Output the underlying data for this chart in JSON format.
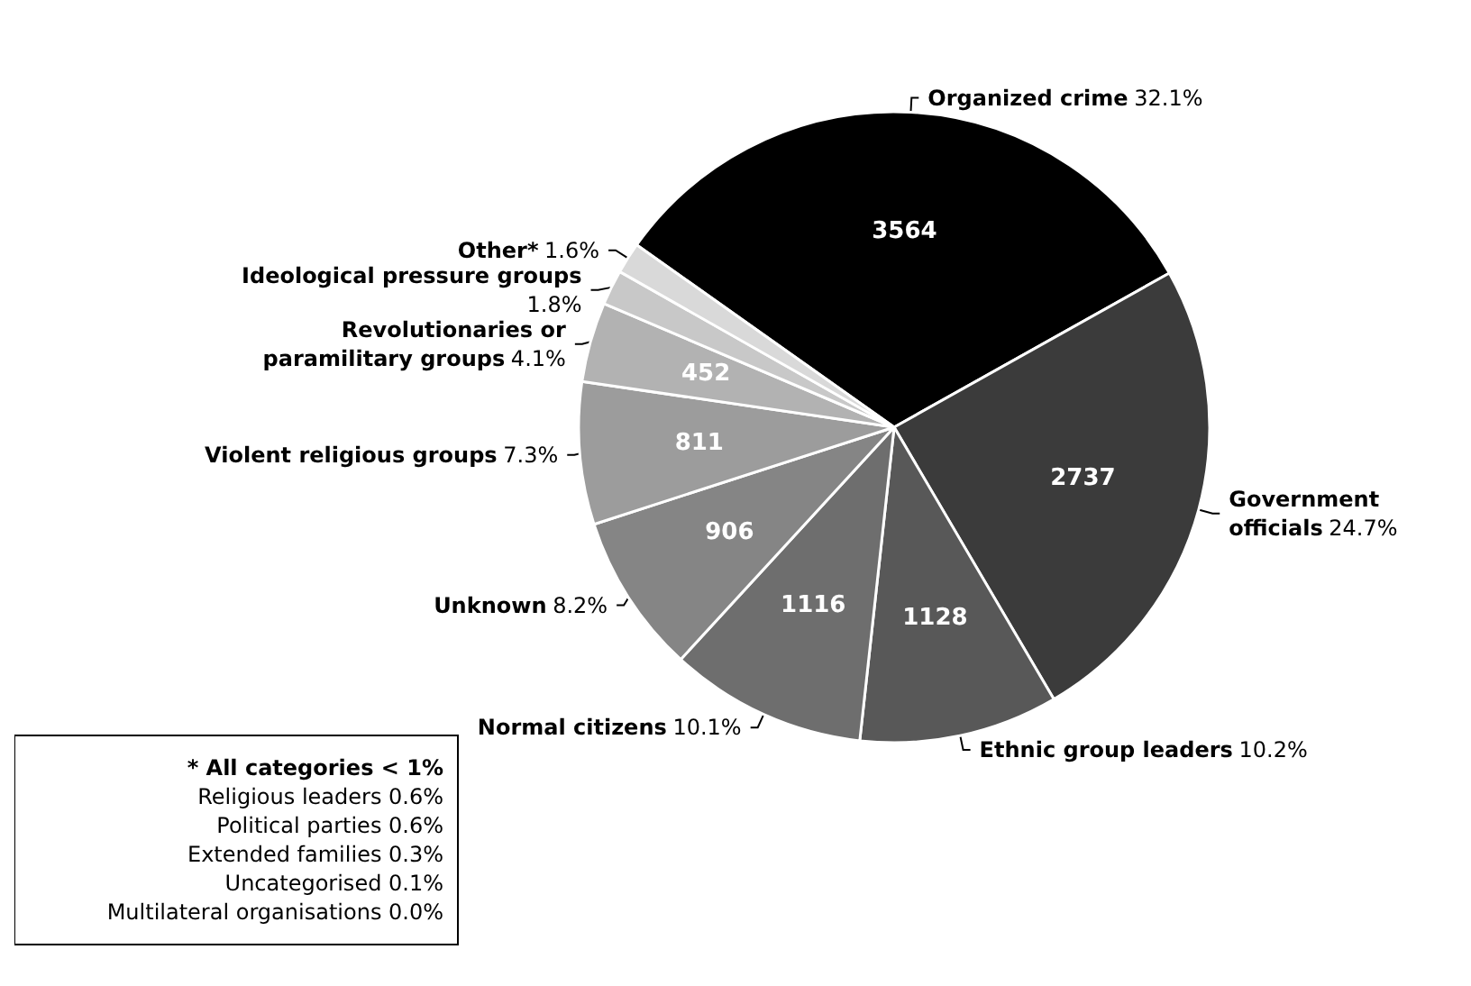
{
  "chart_data": {
    "type": "pie",
    "categories": [
      "Organized crime",
      "Government officials",
      "Ethnic group leaders",
      "Normal citizens",
      "Unknown",
      "Violent religious groups",
      "Revolutionaries or paramilitary groups",
      "Ideological pressure groups",
      "Other*"
    ],
    "values": [
      32.1,
      24.7,
      10.2,
      10.1,
      8.2,
      7.3,
      4.1,
      1.8,
      1.6
    ],
    "colors": [
      "#000000",
      "#3b3b3b",
      "#585858",
      "#6e6e6e",
      "#858585",
      "#9c9c9c",
      "#b2b2b2",
      "#c8c8c8",
      "#d9d9d9"
    ],
    "value_labels": [
      "32.1%",
      "24.7%",
      "10.2%",
      "10.1%",
      "8.2%",
      "7.3%",
      "4.1%",
      "1.8%",
      "1.6%"
    ],
    "annotations": [
      {
        "text": "3564",
        "x": "Organized crime"
      },
      {
        "text": "2737",
        "x": "Government officials"
      },
      {
        "text": "1128",
        "x": "Ethnic group leaders"
      },
      {
        "text": "1116",
        "x": "Normal citizens"
      },
      {
        "text": "906",
        "x": "Unknown"
      },
      {
        "text": "811",
        "x": "Violent religious groups"
      },
      {
        "text": "452",
        "x": "Revolutionaries or paramilitary groups"
      },
      "* All categories < 1%",
      "Religious leaders 0.6%",
      "Political parties 0.6%",
      "Extended families 0.3%",
      "Uncategorised 0.1%",
      "Multilateral organisations 0.0%"
    ]
  }
}
